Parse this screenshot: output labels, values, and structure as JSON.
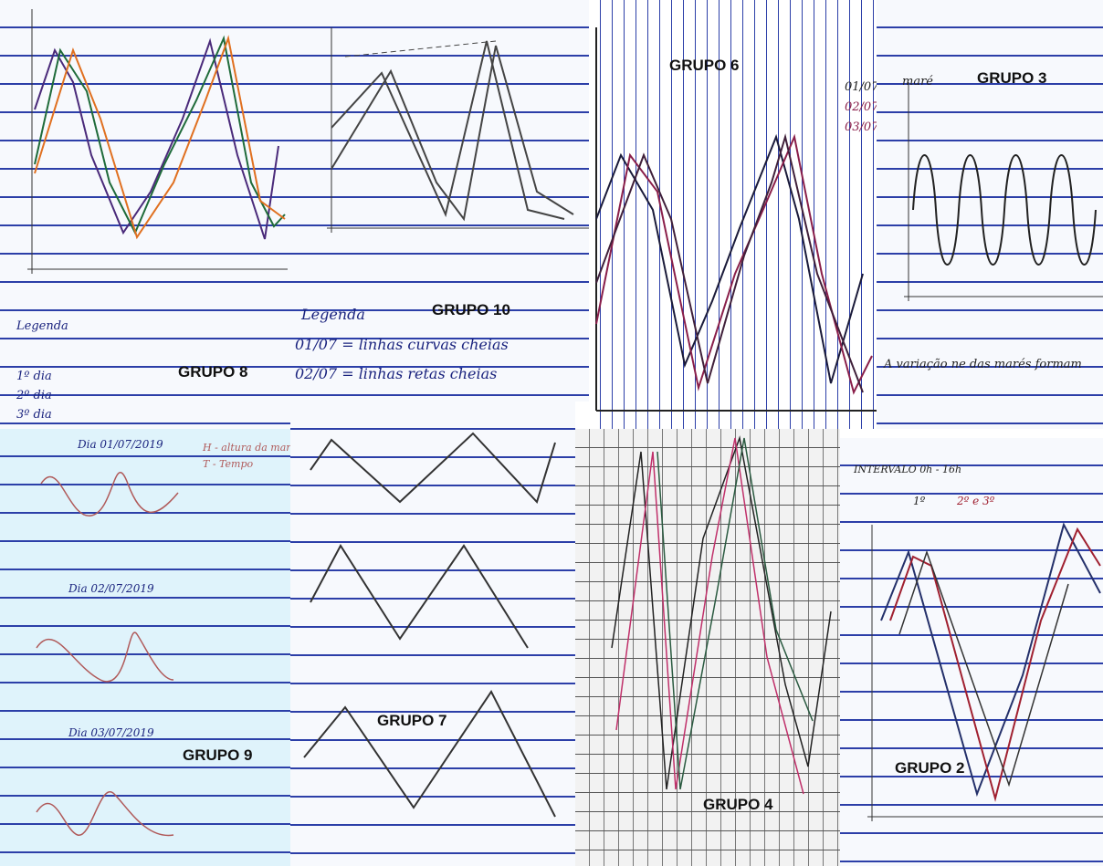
{
  "panels": [
    {
      "label": "GRUPO 8",
      "notes": [
        "Legenda",
        "1º dia",
        "2º dia",
        "3º dia"
      ]
    },
    {
      "label": "GRUPO 10",
      "notes": [
        "Legenda",
        "01/07 = linhas curvas cheias",
        "02/07 = linhas retas cheias"
      ]
    },
    {
      "label": "GRUPO 6",
      "notes": [
        "01/07",
        "02/07",
        "03/07"
      ]
    },
    {
      "label": "GRUPO 3",
      "notes": [
        "maré",
        "A variação ne das marés formam"
      ]
    },
    {
      "label": "GRUPO 9",
      "notes": [
        "Dia 01/07/2019",
        "H - altura da maré",
        "T - Tempo",
        "Dia 02/07/2019",
        "Dia 03/07/2019"
      ]
    },
    {
      "label": "GRUPO 7"
    },
    {
      "label": "GRUPO 4"
    },
    {
      "label": "GRUPO 2",
      "notes": [
        "INTERVALO 0h - 16h",
        "1º",
        "2º e 3º"
      ]
    }
  ]
}
